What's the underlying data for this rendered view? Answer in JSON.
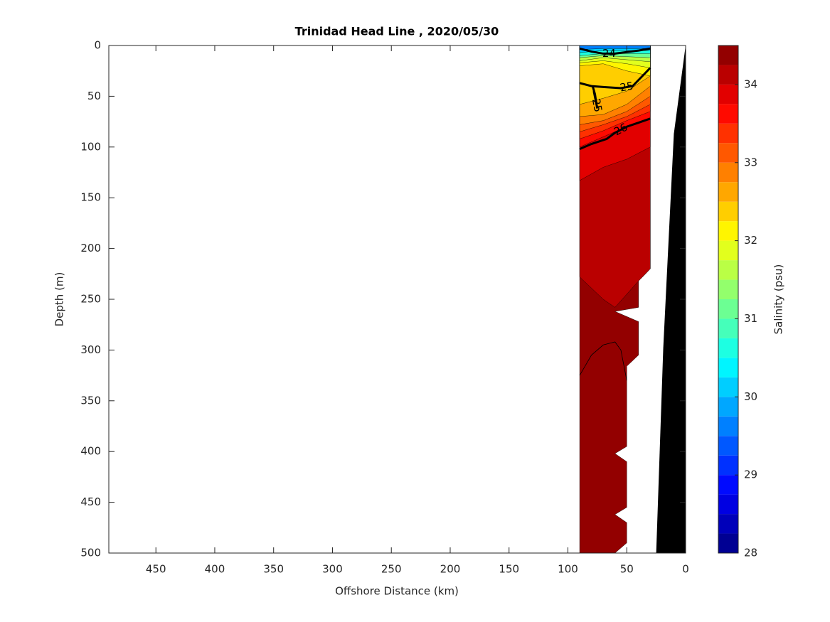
{
  "chart_data": {
    "type": "contour",
    "title": "Trinidad Head Line , 2020/05/30",
    "xlabel": "Offshore Distance (km)",
    "ylabel": "Depth (m)",
    "xlim": [
      490,
      0
    ],
    "ylim": [
      0,
      500
    ],
    "xticks": [
      450,
      400,
      350,
      300,
      250,
      200,
      150,
      100,
      50,
      0
    ],
    "yticks": [
      0,
      50,
      100,
      150,
      200,
      250,
      300,
      350,
      400,
      450,
      500
    ],
    "colorbar": {
      "label": "Salinity (psu)",
      "clim": [
        28,
        34.5
      ],
      "ticks": [
        28,
        29,
        30,
        31,
        32,
        33,
        34
      ],
      "level_step": 0.25,
      "colormap": "jet"
    },
    "regions": [
      {
        "level": 34.25,
        "x": [
          90,
          30,
          30,
          40,
          40,
          60,
          40,
          40,
          50,
          50,
          60,
          50,
          50,
          60,
          50,
          50,
          60,
          90
        ],
        "y": [
          0,
          0,
          220,
          232,
          258,
          262,
          272,
          305,
          316,
          395,
          402,
          410,
          455,
          462,
          470,
          490,
          500,
          500
        ]
      },
      {
        "level": 34.0,
        "x": [
          90,
          30,
          30,
          40,
          60,
          70,
          90
        ],
        "y": [
          0,
          0,
          220,
          232,
          258,
          250,
          228
        ]
      },
      {
        "level": 33.75,
        "x": [
          90,
          30,
          30,
          50,
          70,
          90
        ],
        "y": [
          0,
          0,
          100,
          112,
          120,
          133
        ]
      },
      {
        "level": 33.5,
        "x": [
          90,
          30,
          30,
          50,
          70,
          90
        ],
        "y": [
          0,
          0,
          72,
          80,
          90,
          100
        ]
      },
      {
        "level": 33.25,
        "x": [
          90,
          30,
          30,
          50,
          70,
          90
        ],
        "y": [
          0,
          0,
          65,
          74,
          84,
          92
        ]
      },
      {
        "level": 33.0,
        "x": [
          90,
          30,
          30,
          50,
          70,
          90
        ],
        "y": [
          0,
          0,
          58,
          70,
          78,
          85
        ]
      },
      {
        "level": 32.75,
        "x": [
          90,
          30,
          30,
          50,
          70,
          90
        ],
        "y": [
          0,
          0,
          50,
          65,
          74,
          78
        ]
      },
      {
        "level": 32.5,
        "x": [
          90,
          30,
          30,
          50,
          70,
          90
        ],
        "y": [
          0,
          0,
          40,
          58,
          68,
          70
        ]
      },
      {
        "level": 32.25,
        "x": [
          90,
          30,
          30,
          50,
          70,
          90
        ],
        "y": [
          0,
          0,
          30,
          45,
          52,
          58
        ]
      },
      {
        "level": 32.0,
        "x": [
          90,
          30,
          30,
          50,
          70,
          90
        ],
        "y": [
          0,
          0,
          30,
          25,
          18,
          20
        ]
      },
      {
        "level": 31.75,
        "x": [
          90,
          30,
          30,
          50,
          70,
          90
        ],
        "y": [
          0,
          0,
          22,
          18,
          15,
          17
        ]
      },
      {
        "level": 31.5,
        "x": [
          90,
          30,
          30,
          50,
          70,
          90
        ],
        "y": [
          0,
          0,
          16,
          14,
          12,
          15
        ]
      },
      {
        "level": 31.0,
        "x": [
          90,
          30,
          30,
          50,
          70,
          90
        ],
        "y": [
          0,
          0,
          12,
          11,
          10,
          12
        ]
      },
      {
        "level": 30.5,
        "x": [
          90,
          30,
          30,
          50,
          70,
          90
        ],
        "y": [
          0,
          0,
          8,
          8,
          8,
          10
        ]
      },
      {
        "level": 30.0,
        "x": [
          90,
          30,
          30,
          50,
          70,
          90
        ],
        "y": [
          0,
          0,
          5,
          5,
          5,
          7
        ]
      },
      {
        "level": 29.5,
        "x": [
          90,
          30,
          30,
          50,
          70,
          90
        ],
        "y": [
          0,
          0,
          3,
          3,
          3,
          4
        ]
      }
    ],
    "contour_lines": [
      {
        "label": 24,
        "x": [
          90,
          80,
          70,
          60,
          40,
          30
        ],
        "y": [
          3,
          6,
          8,
          8,
          5,
          3
        ]
      },
      {
        "label": 25,
        "x": [
          90,
          80,
          69,
          55,
          45,
          35,
          30
        ],
        "y": [
          37,
          40,
          41,
          42,
          40,
          28,
          22
        ]
      },
      {
        "label": 25,
        "x": [
          79,
          77,
          76,
          75,
          78
        ],
        "y": [
          40,
          48,
          56,
          62,
          45
        ]
      },
      {
        "label": 26,
        "x": [
          90,
          80,
          67,
          60,
          50,
          40,
          30
        ],
        "y": [
          102,
          97,
          92,
          86,
          80,
          76,
          72
        ]
      },
      {
        "x": [
          90,
          80,
          70,
          60,
          55,
          52,
          50
        ],
        "y": [
          325,
          305,
          295,
          292,
          300,
          318,
          330
        ]
      }
    ],
    "bathymetry": {
      "x": [
        0,
        10,
        19,
        25,
        0
      ],
      "y": [
        0,
        87,
        298,
        500,
        500
      ]
    }
  }
}
